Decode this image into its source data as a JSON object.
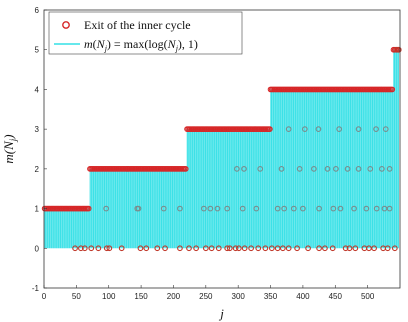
{
  "chart_data": {
    "type": "scatter",
    "xlabel": "j",
    "ylabel": "m(N_j)",
    "xlim": [
      0,
      550
    ],
    "ylim": [
      -1,
      6
    ],
    "xticks": [
      "0",
      "50",
      "100",
      "150",
      "200",
      "250",
      "300",
      "350",
      "400",
      "450",
      "500"
    ],
    "yticks": [
      "-1",
      "0",
      "1",
      "2",
      "3",
      "4",
      "5",
      "6"
    ],
    "grid": false,
    "legend_position": "top-left",
    "legend": [
      {
        "label": "Exit of the inner cycle",
        "marker": "circle"
      },
      {
        "label": "m(N_j) = max(log(N_j), 1)",
        "marker": "line"
      }
    ],
    "series": [
      {
        "name": "m(N_j) = max(log(N_j), 1)",
        "style": "stem",
        "color": "#33e0e6",
        "steps": [
          {
            "x_start": 1,
            "x_end": 70,
            "y": 1
          },
          {
            "x_start": 71,
            "x_end": 220,
            "y": 2
          },
          {
            "x_start": 221,
            "x_end": 349,
            "y": 3
          },
          {
            "x_start": 350,
            "x_end": 539,
            "y": 4
          },
          {
            "x_start": 540,
            "x_end": 548,
            "y": 5
          }
        ]
      },
      {
        "name": "Exit of the inner cycle",
        "style": "markers",
        "color": "#d62728",
        "points": [
          {
            "x": 48,
            "y": 0
          },
          {
            "x": 57,
            "y": 0
          },
          {
            "x": 63,
            "y": 0
          },
          {
            "x": 73,
            "y": 0
          },
          {
            "x": 84,
            "y": 0
          },
          {
            "x": 97,
            "y": 0
          },
          {
            "x": 101,
            "y": 0
          },
          {
            "x": 120,
            "y": 0
          },
          {
            "x": 149,
            "y": 0
          },
          {
            "x": 158,
            "y": 0
          },
          {
            "x": 175,
            "y": 0
          },
          {
            "x": 187,
            "y": 0
          },
          {
            "x": 210,
            "y": 0
          },
          {
            "x": 224,
            "y": 0
          },
          {
            "x": 235,
            "y": 0
          },
          {
            "x": 250,
            "y": 0
          },
          {
            "x": 259,
            "y": 0
          },
          {
            "x": 270,
            "y": 0
          },
          {
            "x": 283,
            "y": 0
          },
          {
            "x": 287,
            "y": 0
          },
          {
            "x": 296,
            "y": 0
          },
          {
            "x": 301,
            "y": 0
          },
          {
            "x": 310,
            "y": 0
          },
          {
            "x": 320,
            "y": 0
          },
          {
            "x": 331,
            "y": 0
          },
          {
            "x": 342,
            "y": 0
          },
          {
            "x": 352,
            "y": 0
          },
          {
            "x": 361,
            "y": 0
          },
          {
            "x": 369,
            "y": 0
          },
          {
            "x": 378,
            "y": 0
          },
          {
            "x": 391,
            "y": 0
          },
          {
            "x": 408,
            "y": 0
          },
          {
            "x": 425,
            "y": 0
          },
          {
            "x": 434,
            "y": 0
          },
          {
            "x": 446,
            "y": 0
          },
          {
            "x": 466,
            "y": 0
          },
          {
            "x": 472,
            "y": 0
          },
          {
            "x": 481,
            "y": 0
          },
          {
            "x": 495,
            "y": 0
          },
          {
            "x": 502,
            "y": 0
          },
          {
            "x": 510,
            "y": 0
          },
          {
            "x": 524,
            "y": 0
          },
          {
            "x": 531,
            "y": 0
          },
          {
            "x": 542,
            "y": 0
          },
          {
            "x": 96,
            "y": 1
          },
          {
            "x": 144,
            "y": 1
          },
          {
            "x": 146,
            "y": 1
          },
          {
            "x": 185,
            "y": 1
          },
          {
            "x": 210,
            "y": 1
          },
          {
            "x": 247,
            "y": 1
          },
          {
            "x": 257,
            "y": 1
          },
          {
            "x": 268,
            "y": 1
          },
          {
            "x": 283,
            "y": 1
          },
          {
            "x": 307,
            "y": 1
          },
          {
            "x": 328,
            "y": 1
          },
          {
            "x": 361,
            "y": 1
          },
          {
            "x": 371,
            "y": 1
          },
          {
            "x": 386,
            "y": 1
          },
          {
            "x": 400,
            "y": 1
          },
          {
            "x": 425,
            "y": 1
          },
          {
            "x": 447,
            "y": 1
          },
          {
            "x": 458,
            "y": 1
          },
          {
            "x": 479,
            "y": 1
          },
          {
            "x": 498,
            "y": 1
          },
          {
            "x": 514,
            "y": 1
          },
          {
            "x": 526,
            "y": 1
          },
          {
            "x": 534,
            "y": 1
          },
          {
            "x": 298,
            "y": 2
          },
          {
            "x": 309,
            "y": 2
          },
          {
            "x": 334,
            "y": 2
          },
          {
            "x": 367,
            "y": 2
          },
          {
            "x": 395,
            "y": 2
          },
          {
            "x": 417,
            "y": 2
          },
          {
            "x": 438,
            "y": 2
          },
          {
            "x": 451,
            "y": 2
          },
          {
            "x": 469,
            "y": 2
          },
          {
            "x": 486,
            "y": 2
          },
          {
            "x": 504,
            "y": 2
          },
          {
            "x": 522,
            "y": 2
          },
          {
            "x": 534,
            "y": 2
          },
          {
            "x": 378,
            "y": 3
          },
          {
            "x": 403,
            "y": 3
          },
          {
            "x": 424,
            "y": 3
          },
          {
            "x": 456,
            "y": 3
          },
          {
            "x": 486,
            "y": 3
          },
          {
            "x": 513,
            "y": 3
          },
          {
            "x": 528,
            "y": 3
          },
          {
            "x": 544,
            "y": 5
          },
          {
            "x": 548,
            "y": 5
          }
        ]
      }
    ]
  }
}
